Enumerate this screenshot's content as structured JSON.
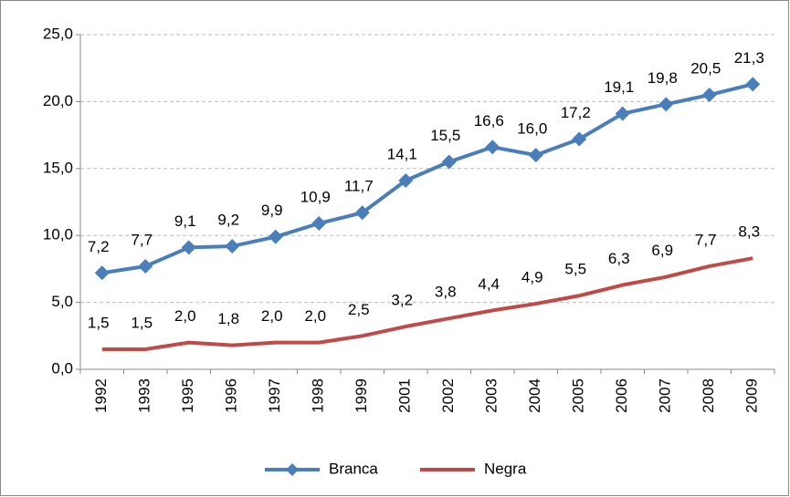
{
  "chart_data": {
    "type": "line",
    "categories": [
      "1992",
      "1993",
      "1995",
      "1996",
      "1997",
      "1998",
      "1999",
      "2001",
      "2002",
      "2003",
      "2004",
      "2005",
      "2006",
      "2007",
      "2008",
      "2009"
    ],
    "series": [
      {
        "name": "Branca",
        "color": "#4a7ebb",
        "marker": "diamond",
        "values": [
          7.2,
          7.7,
          9.1,
          9.2,
          9.9,
          10.9,
          11.7,
          14.1,
          15.5,
          16.6,
          16.0,
          17.2,
          19.1,
          19.8,
          20.5,
          21.3
        ],
        "value_labels": [
          "7,2",
          "7,7",
          "9,1",
          "9,2",
          "9,9",
          "10,9",
          "11,7",
          "14,1",
          "15,5",
          "16,6",
          "16,0",
          "17,2",
          "19,1",
          "19,8",
          "20,5",
          "21,3"
        ]
      },
      {
        "name": "Negra",
        "color": "#be4b48",
        "values": [
          1.5,
          1.5,
          2.0,
          1.8,
          2.0,
          2.0,
          2.5,
          3.2,
          3.8,
          4.4,
          4.9,
          5.5,
          6.3,
          6.9,
          7.7,
          8.3
        ],
        "value_labels": [
          "1,5",
          "1,5",
          "2,0",
          "1,8",
          "2,0",
          "2,0",
          "2,5",
          "3,2",
          "3,8",
          "4,4",
          "4,9",
          "5,5",
          "6,3",
          "6,9",
          "7,7",
          "8,3"
        ]
      }
    ],
    "ylim": [
      0,
      25
    ],
    "yticks": [
      {
        "value": 0,
        "label": "0,0"
      },
      {
        "value": 5,
        "label": "5,0"
      },
      {
        "value": 10,
        "label": "10,0"
      },
      {
        "value": 15,
        "label": "15,0"
      },
      {
        "value": 20,
        "label": "20,0"
      },
      {
        "value": 25,
        "label": "25,0"
      }
    ],
    "grid": true,
    "legend": "bottom"
  }
}
